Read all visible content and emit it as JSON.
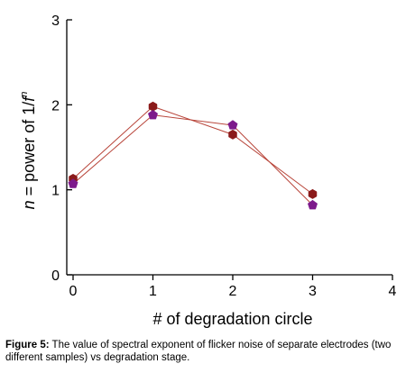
{
  "chart_data": {
    "type": "line",
    "xlabel": "# of degradation circle",
    "ylabel": "n = power of 1/f^n",
    "ylabel_parts": {
      "var": "n",
      "mid": " = power of 1/",
      "f": "f",
      "sup": "n"
    },
    "xlim": [
      0,
      4
    ],
    "ylim": [
      0,
      3
    ],
    "xticks": [
      "0",
      "1",
      "2",
      "3",
      "4"
    ],
    "yticks": [
      "0",
      "1",
      "2",
      "3"
    ],
    "grid": false,
    "legend": "none",
    "series": [
      {
        "marker": "hexagon",
        "color": "#8b1a1a",
        "x": [
          0,
          1,
          2,
          3
        ],
        "y": [
          1.13,
          1.98,
          1.65,
          0.95
        ]
      },
      {
        "marker": "pentagon",
        "color": "#7d1a8c",
        "x": [
          0,
          1,
          2,
          3
        ],
        "y": [
          1.07,
          1.88,
          1.76,
          0.82
        ]
      }
    ],
    "line_color": "#b8453a"
  },
  "caption": {
    "label": "Figure 5:",
    "text": " The value of spectral exponent of flicker noise of separate electrodes (two different samples) vs degradation stage."
  }
}
